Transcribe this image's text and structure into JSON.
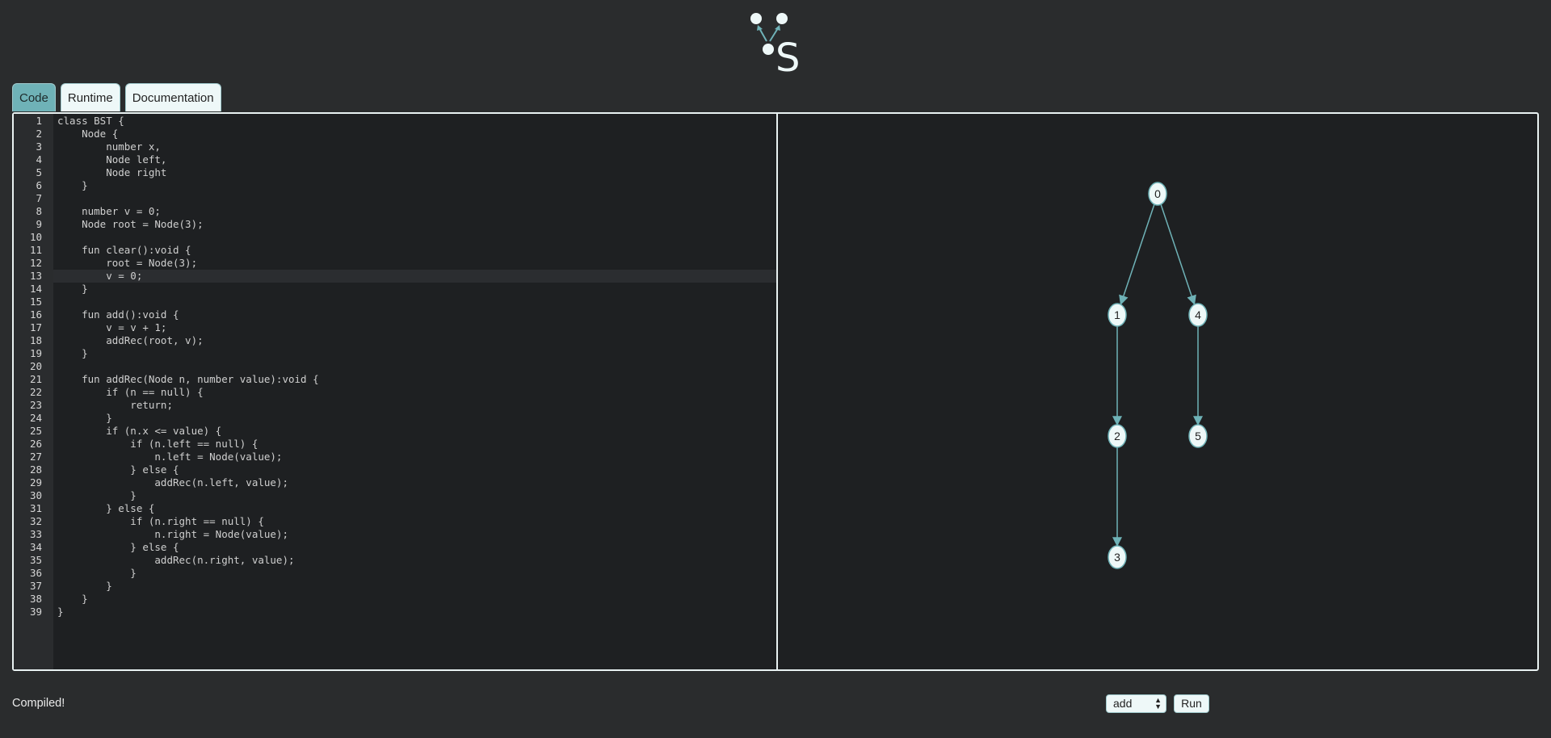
{
  "logo": {
    "letter": "S"
  },
  "tabs": [
    {
      "label": "Code",
      "active": true
    },
    {
      "label": "Runtime",
      "active": false
    },
    {
      "label": "Documentation",
      "active": false
    }
  ],
  "editor": {
    "active_line": 13,
    "lines": [
      "class BST {",
      "    Node {",
      "        number x,",
      "        Node left,",
      "        Node right",
      "    }",
      "",
      "    number v = 0;",
      "    Node root = Node(3);",
      "",
      "    fun clear():void {",
      "        root = Node(3);",
      "        v = 0;",
      "    }",
      "",
      "    fun add():void {",
      "        v = v + 1;",
      "        addRec(root, v);",
      "    }",
      "",
      "    fun addRec(Node n, number value):void {",
      "        if (n == null) {",
      "            return;",
      "        }",
      "        if (n.x <= value) {",
      "            if (n.left == null) {",
      "                n.left = Node(value);",
      "            } else {",
      "                addRec(n.left, value);",
      "            }",
      "        } else {",
      "            if (n.right == null) {",
      "                n.right = Node(value);",
      "            } else {",
      "                addRec(n.right, value);",
      "            }",
      "        }",
      "    }",
      "}"
    ]
  },
  "graph": {
    "nodes": [
      {
        "id": "0",
        "label": "0"
      },
      {
        "id": "1",
        "label": "1"
      },
      {
        "id": "4",
        "label": "4"
      },
      {
        "id": "2",
        "label": "2"
      },
      {
        "id": "5",
        "label": "5"
      },
      {
        "id": "3",
        "label": "3"
      }
    ],
    "edges": [
      {
        "from": "0",
        "to": "1"
      },
      {
        "from": "0",
        "to": "4"
      },
      {
        "from": "1",
        "to": "2"
      },
      {
        "from": "4",
        "to": "5"
      },
      {
        "from": "2",
        "to": "3"
      }
    ],
    "node_color": "#eef8f8",
    "edge_color": "#6fb2b7"
  },
  "status": {
    "text": "Compiled!"
  },
  "controls": {
    "selected_function": "add",
    "run_label": "Run"
  },
  "colors": {
    "accent": "#6fb2b7",
    "background": "#2a2c2d"
  }
}
